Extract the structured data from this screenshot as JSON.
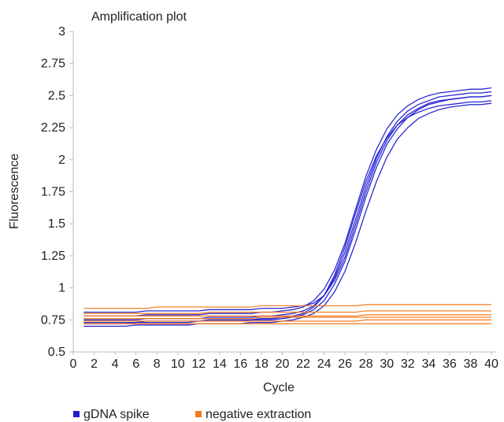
{
  "chart_data": {
    "type": "line",
    "title": "Amplification plot",
    "xlabel": "Cycle",
    "ylabel": "Fluorescence",
    "xlim": [
      0,
      40
    ],
    "ylim": [
      0.5,
      3
    ],
    "xticks": [
      0,
      2,
      4,
      6,
      8,
      10,
      12,
      14,
      16,
      18,
      20,
      22,
      24,
      26,
      28,
      30,
      32,
      34,
      36,
      38,
      40
    ],
    "yticks": [
      0.5,
      0.75,
      1,
      1.25,
      1.5,
      1.75,
      2,
      2.25,
      2.5,
      2.75,
      3
    ],
    "ytick_labels": [
      "0.5",
      "0.75",
      "1",
      "1.25",
      "1.5",
      "1.75",
      "2",
      "2.25",
      "2.5",
      "2.75",
      "3"
    ],
    "grid": false,
    "legend_position": "bottom",
    "x": [
      1,
      2,
      3,
      4,
      5,
      6,
      7,
      8,
      9,
      10,
      11,
      12,
      13,
      14,
      15,
      16,
      17,
      18,
      19,
      20,
      21,
      22,
      23,
      24,
      25,
      26,
      27,
      28,
      29,
      30,
      31,
      32,
      33,
      34,
      35,
      36,
      37,
      38,
      39,
      40
    ],
    "series": [
      {
        "name": "gDNA spike",
        "color": "#1f1fd1",
        "curves": [
          [
            0.7,
            0.7,
            0.7,
            0.7,
            0.7,
            0.71,
            0.71,
            0.71,
            0.71,
            0.71,
            0.71,
            0.72,
            0.72,
            0.72,
            0.72,
            0.72,
            0.73,
            0.73,
            0.73,
            0.74,
            0.75,
            0.77,
            0.8,
            0.86,
            0.97,
            1.13,
            1.35,
            1.6,
            1.83,
            2.02,
            2.16,
            2.25,
            2.32,
            2.36,
            2.39,
            2.41,
            2.42,
            2.43,
            2.43,
            2.44
          ],
          [
            0.72,
            0.72,
            0.72,
            0.72,
            0.72,
            0.73,
            0.73,
            0.73,
            0.73,
            0.73,
            0.73,
            0.74,
            0.74,
            0.74,
            0.74,
            0.74,
            0.75,
            0.75,
            0.75,
            0.76,
            0.77,
            0.79,
            0.83,
            0.9,
            1.03,
            1.21,
            1.45,
            1.71,
            1.94,
            2.12,
            2.24,
            2.33,
            2.39,
            2.43,
            2.45,
            2.47,
            2.48,
            2.49,
            2.49,
            2.5
          ],
          [
            0.75,
            0.75,
            0.75,
            0.75,
            0.75,
            0.75,
            0.76,
            0.76,
            0.76,
            0.76,
            0.76,
            0.76,
            0.77,
            0.77,
            0.77,
            0.77,
            0.77,
            0.78,
            0.78,
            0.79,
            0.8,
            0.82,
            0.86,
            0.94,
            1.08,
            1.28,
            1.53,
            1.79,
            2.01,
            2.18,
            2.3,
            2.38,
            2.43,
            2.46,
            2.49,
            2.5,
            2.51,
            2.52,
            2.52,
            2.53
          ],
          [
            0.78,
            0.78,
            0.78,
            0.78,
            0.78,
            0.78,
            0.79,
            0.79,
            0.79,
            0.79,
            0.79,
            0.79,
            0.8,
            0.8,
            0.8,
            0.8,
            0.8,
            0.81,
            0.81,
            0.82,
            0.83,
            0.85,
            0.9,
            0.99,
            1.14,
            1.35,
            1.61,
            1.87,
            2.08,
            2.24,
            2.35,
            2.42,
            2.47,
            2.5,
            2.52,
            2.53,
            2.54,
            2.55,
            2.55,
            2.56
          ],
          [
            0.81,
            0.81,
            0.81,
            0.81,
            0.81,
            0.81,
            0.82,
            0.82,
            0.82,
            0.82,
            0.82,
            0.82,
            0.83,
            0.83,
            0.83,
            0.83,
            0.83,
            0.84,
            0.84,
            0.84,
            0.85,
            0.86,
            0.88,
            0.94,
            1.06,
            1.24,
            1.49,
            1.75,
            1.98,
            2.15,
            2.27,
            2.35,
            2.4,
            2.44,
            2.46,
            2.47,
            2.48,
            2.49,
            2.49,
            2.5
          ],
          [
            0.73,
            0.73,
            0.73,
            0.73,
            0.73,
            0.73,
            0.74,
            0.74,
            0.74,
            0.74,
            0.74,
            0.74,
            0.75,
            0.75,
            0.75,
            0.75,
            0.75,
            0.76,
            0.76,
            0.77,
            0.78,
            0.8,
            0.85,
            0.94,
            1.1,
            1.32,
            1.58,
            1.83,
            2.03,
            2.17,
            2.27,
            2.33,
            2.37,
            2.4,
            2.42,
            2.43,
            2.44,
            2.45,
            2.45,
            2.46
          ]
        ]
      },
      {
        "name": "negative extraction",
        "color": "#f47b1f",
        "curves": [
          [
            0.84,
            0.84,
            0.84,
            0.84,
            0.84,
            0.84,
            0.84,
            0.85,
            0.85,
            0.85,
            0.85,
            0.85,
            0.85,
            0.85,
            0.85,
            0.85,
            0.85,
            0.86,
            0.86,
            0.86,
            0.86,
            0.86,
            0.86,
            0.86,
            0.86,
            0.86,
            0.86,
            0.87,
            0.87,
            0.87,
            0.87,
            0.87,
            0.87,
            0.87,
            0.87,
            0.87,
            0.87,
            0.87,
            0.87,
            0.87
          ],
          [
            0.8,
            0.8,
            0.8,
            0.8,
            0.8,
            0.8,
            0.8,
            0.8,
            0.8,
            0.8,
            0.8,
            0.8,
            0.81,
            0.81,
            0.81,
            0.81,
            0.81,
            0.81,
            0.81,
            0.81,
            0.81,
            0.81,
            0.81,
            0.81,
            0.81,
            0.81,
            0.81,
            0.82,
            0.82,
            0.82,
            0.82,
            0.82,
            0.82,
            0.82,
            0.82,
            0.82,
            0.82,
            0.82,
            0.82,
            0.82
          ],
          [
            0.76,
            0.76,
            0.76,
            0.76,
            0.76,
            0.76,
            0.76,
            0.76,
            0.76,
            0.76,
            0.76,
            0.76,
            0.76,
            0.76,
            0.76,
            0.76,
            0.76,
            0.77,
            0.77,
            0.77,
            0.77,
            0.77,
            0.77,
            0.77,
            0.77,
            0.77,
            0.77,
            0.77,
            0.77,
            0.77,
            0.77,
            0.77,
            0.77,
            0.77,
            0.77,
            0.77,
            0.77,
            0.77,
            0.77,
            0.77
          ],
          [
            0.74,
            0.74,
            0.74,
            0.74,
            0.74,
            0.74,
            0.74,
            0.74,
            0.74,
            0.74,
            0.74,
            0.74,
            0.74,
            0.74,
            0.74,
            0.74,
            0.74,
            0.74,
            0.74,
            0.74,
            0.74,
            0.74,
            0.74,
            0.74,
            0.74,
            0.74,
            0.74,
            0.75,
            0.75,
            0.75,
            0.75,
            0.75,
            0.75,
            0.75,
            0.75,
            0.75,
            0.75,
            0.75,
            0.75,
            0.75
          ],
          [
            0.72,
            0.72,
            0.72,
            0.72,
            0.72,
            0.72,
            0.72,
            0.72,
            0.72,
            0.72,
            0.72,
            0.72,
            0.72,
            0.72,
            0.72,
            0.72,
            0.72,
            0.72,
            0.72,
            0.72,
            0.72,
            0.72,
            0.72,
            0.72,
            0.72,
            0.72,
            0.72,
            0.72,
            0.72,
            0.72,
            0.72,
            0.72,
            0.72,
            0.72,
            0.72,
            0.72,
            0.72,
            0.72,
            0.72,
            0.72
          ],
          [
            0.78,
            0.78,
            0.78,
            0.78,
            0.78,
            0.78,
            0.78,
            0.78,
            0.78,
            0.78,
            0.78,
            0.78,
            0.78,
            0.78,
            0.78,
            0.78,
            0.78,
            0.78,
            0.78,
            0.78,
            0.78,
            0.78,
            0.78,
            0.78,
            0.78,
            0.78,
            0.78,
            0.79,
            0.79,
            0.79,
            0.79,
            0.79,
            0.79,
            0.79,
            0.79,
            0.79,
            0.79,
            0.79,
            0.79,
            0.79
          ]
        ]
      }
    ]
  }
}
